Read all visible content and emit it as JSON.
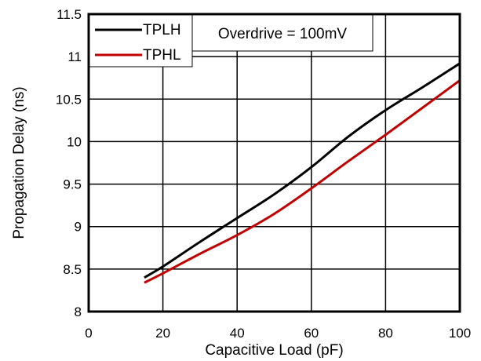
{
  "chart_data": {
    "type": "line",
    "title": "",
    "xlabel": "Capacitive Load (pF)",
    "ylabel": "Propagation Delay (ns)",
    "xlim": [
      0,
      100
    ],
    "ylim": [
      8,
      11.5
    ],
    "x_ticks": [
      0,
      20,
      40,
      60,
      80,
      100
    ],
    "y_ticks": [
      8,
      8.5,
      9,
      9.5,
      10,
      10.5,
      11,
      11.5
    ],
    "x_tick_labels": [
      "0",
      "20",
      "40",
      "60",
      "80",
      "100"
    ],
    "y_tick_labels": [
      "8",
      "8.5",
      "9",
      "9.5",
      "10",
      "10.5",
      "11",
      "11.5"
    ],
    "grid": true,
    "legend_position": "top-left",
    "annotation": "Overdrive = 100mV",
    "series": [
      {
        "name": "TPLH",
        "color": "#000000",
        "x": [
          15,
          20,
          30,
          40,
          50,
          60,
          70,
          80,
          90,
          100
        ],
        "y": [
          8.4,
          8.53,
          8.82,
          9.1,
          9.38,
          9.7,
          10.06,
          10.37,
          10.64,
          10.92
        ]
      },
      {
        "name": "TPHL",
        "color": "#c00000",
        "x": [
          15,
          20,
          30,
          40,
          50,
          60,
          70,
          80,
          90,
          100
        ],
        "y": [
          8.34,
          8.45,
          8.68,
          8.9,
          9.15,
          9.45,
          9.77,
          10.08,
          10.4,
          10.72
        ]
      }
    ]
  }
}
